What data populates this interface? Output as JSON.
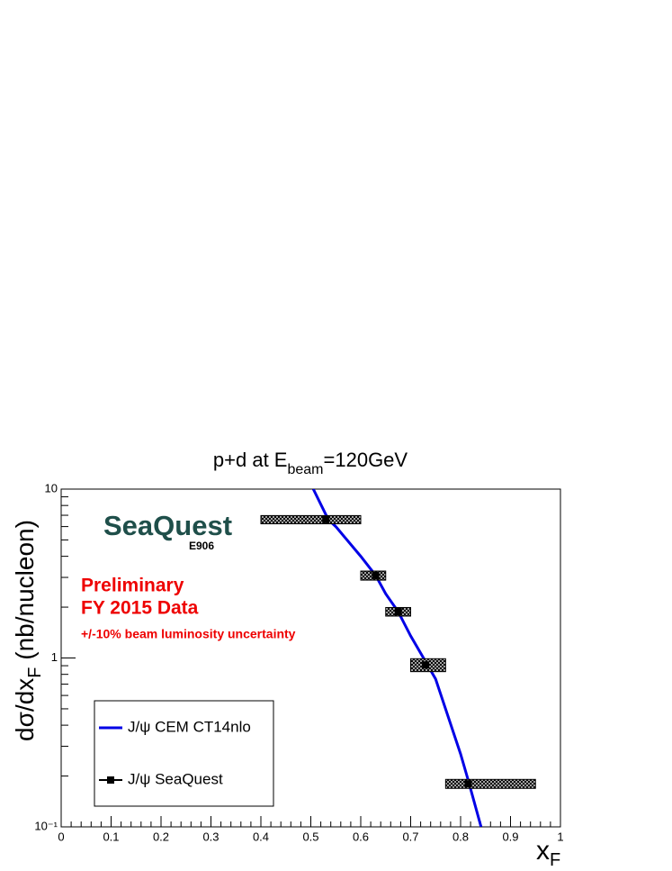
{
  "chart_data": {
    "type": "scatter",
    "title": {
      "main": "p+d at E",
      "sub": "beam",
      "rest": "=120GeV"
    },
    "y_label": {
      "main": "dσ/dx",
      "sub": "F",
      "rest": " (nb/nucleon)"
    },
    "x_label": {
      "main": "x",
      "sub": "F"
    },
    "xlim": [
      0,
      1
    ],
    "xticks": [
      0,
      0.1,
      0.2,
      0.3,
      0.4,
      0.5,
      0.6,
      0.7,
      0.8,
      0.9,
      1
    ],
    "ylim": [
      0.1,
      10
    ],
    "yticks": [
      {
        "value": 0.1,
        "label": "10⁻¹"
      },
      1,
      10
    ],
    "log_y": true,
    "logo": {
      "name": "SeaQuest",
      "experiment": "E906"
    },
    "annotations": [
      "Preliminary",
      "FY 2015 Data",
      "+/-10% beam luminosity uncertainty"
    ],
    "legend": "bottom-left",
    "series": [
      {
        "name": "J/ψ CEM CT14nlo",
        "type": "line",
        "color": "#0000e6",
        "x": [
          0.505,
          0.535,
          0.55,
          0.6,
          0.63,
          0.65,
          0.675,
          0.7,
          0.73,
          0.75,
          0.8,
          0.815,
          0.841
        ],
        "values": [
          10,
          6.6,
          6.0,
          4.0,
          3.08,
          2.4,
          1.88,
          1.35,
          0.95,
          0.75,
          0.27,
          0.19,
          0.1
        ]
      },
      {
        "name": "J/ψ SeaQuest",
        "type": "points",
        "color": "#000000",
        "x": [
          0.53,
          0.63,
          0.675,
          0.73,
          0.815
        ],
        "values": [
          6.6,
          3.08,
          1.88,
          0.91,
          0.18
        ],
        "errors": [
          0.37,
          0.19,
          0.11,
          0.08,
          0.011
        ],
        "x_low": [
          0.4,
          0.6,
          0.65,
          0.7,
          0.77
        ],
        "x_high": [
          0.6,
          0.65,
          0.7,
          0.77,
          0.95
        ]
      }
    ]
  }
}
